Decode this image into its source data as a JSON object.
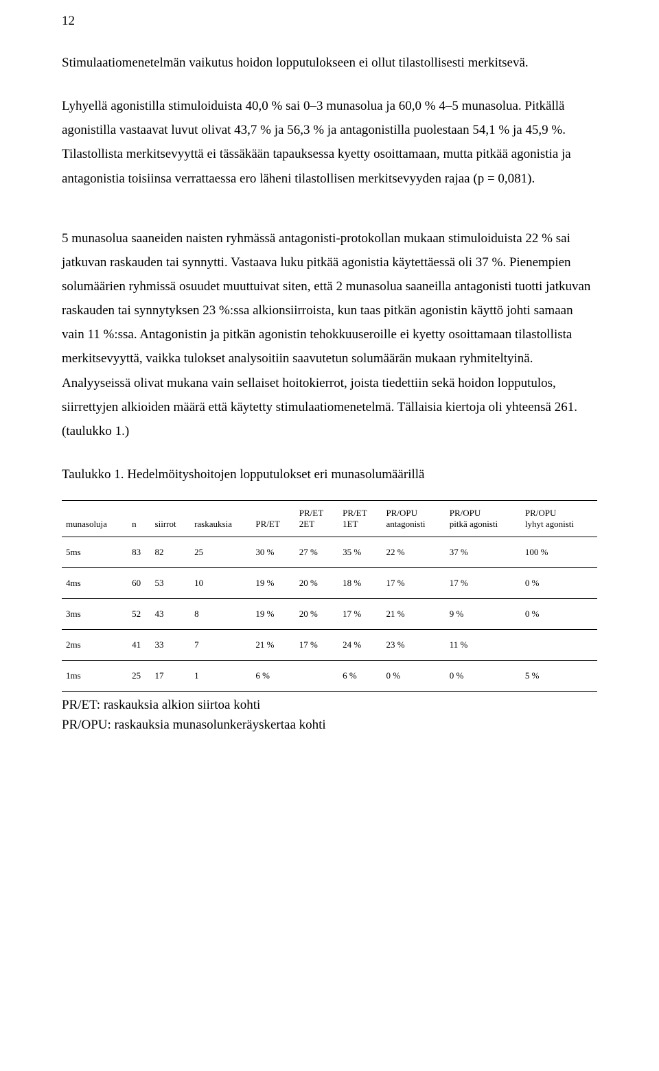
{
  "page_number": "12",
  "paragraphs": {
    "p1": "Stimulaatiomenetelmän vaikutus hoidon lopputulokseen ei ollut tilastollisesti merkitsevä.",
    "p2": "Lyhyellä agonistilla stimuloiduista 40,0 % sai 0‒3 munasolua ja 60,0 % 4‒5 munasolua. Pitkällä agonistilla vastaavat luvut olivat 43,7 % ja 56,3 % ja antagonistilla puolestaan 54,1 % ja 45,9 %. Tilastollista merkitsevyyttä ei tässäkään tapauksessa kyetty osoittamaan, mutta pitkää agonistia ja antagonistia toisiinsa verrattaessa ero läheni tilastollisen merkitsevyyden rajaa (p = 0,081).",
    "p3": "5 munasolua saaneiden naisten ryhmässä antagonisti-protokollan mukaan stimuloiduista 22 % sai jatkuvan raskauden tai synnytti. Vastaava luku pitkää agonistia käytettäessä oli 37 %. Pienempien solumäärien ryhmissä osuudet muuttuivat siten, että 2 munasolua saaneilla antagonisti tuotti jatkuvan raskauden tai synnytyksen 23 %:ssa alkionsiirroista, kun taas pitkän agonistin käyttö johti samaan vain 11 %:ssa. Antagonistin ja pitkän agonistin tehokkuuseroille ei kyetty osoittamaan tilastollista merkitsevyyttä, vaikka tulokset analysoitiin saavutetun solumäärän mukaan ryhmiteltyinä. Analyyseissä olivat mukana vain sellaiset hoitokierrot, joista tiedettiin sekä hoidon lopputulos, siirrettyjen alkioiden määrä että käytetty stimulaatiomenetelmä. Tällaisia kiertoja oli yhteensä 261. (taulukko 1.)"
  },
  "table_title": "Taulukko 1. Hedelmöityshoitojen lopputulokset eri munasolumäärillä",
  "table": {
    "columns": [
      "munasoluja",
      "n",
      "siirrot",
      "raskauksia",
      "PR/ET",
      "PR/ET\n2ET",
      "PR/ET\n1ET",
      "PR/OPU\nantagonisti",
      "PR/OPU\npitkä agonisti",
      "PR/OPU\nlyhyt agonisti"
    ],
    "rows": [
      [
        "5ms",
        "83",
        "82",
        "25",
        "30 %",
        "27 %",
        "35 %",
        "22 %",
        "37 %",
        "100 %"
      ],
      [
        "4ms",
        "60",
        "53",
        "10",
        "19 %",
        "20 %",
        "18 %",
        "17 %",
        "17 %",
        "0 %"
      ],
      [
        "3ms",
        "52",
        "43",
        "8",
        "19 %",
        "20 %",
        "17 %",
        "21 %",
        "9 %",
        "0 %"
      ],
      [
        "2ms",
        "41",
        "33",
        "7",
        "21 %",
        "17 %",
        "24 %",
        "23 %",
        "11 %",
        ""
      ],
      [
        "1ms",
        "25",
        "17",
        "1",
        "6 %",
        "",
        "6 %",
        "0 %",
        "0 %",
        "5 %"
      ]
    ]
  },
  "legend": {
    "l1": "PR/ET: raskauksia alkion siirtoa kohti",
    "l2": "PR/OPU: raskauksia munasolunkeräyskertaa kohti"
  }
}
